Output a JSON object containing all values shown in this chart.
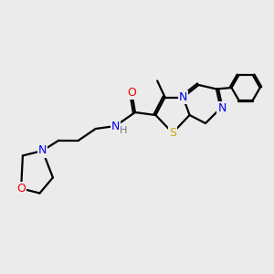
{
  "background_color": "#ebebeb",
  "bond_color": "#000000",
  "figsize": [
    3.0,
    3.0
  ],
  "dpi": 100,
  "atom_colors": {
    "N": "#0000ee",
    "O": "#ee0000",
    "S": "#bbaa00",
    "H": "#777777",
    "C": "#000000"
  },
  "lw": 1.6,
  "fs": 9.0
}
